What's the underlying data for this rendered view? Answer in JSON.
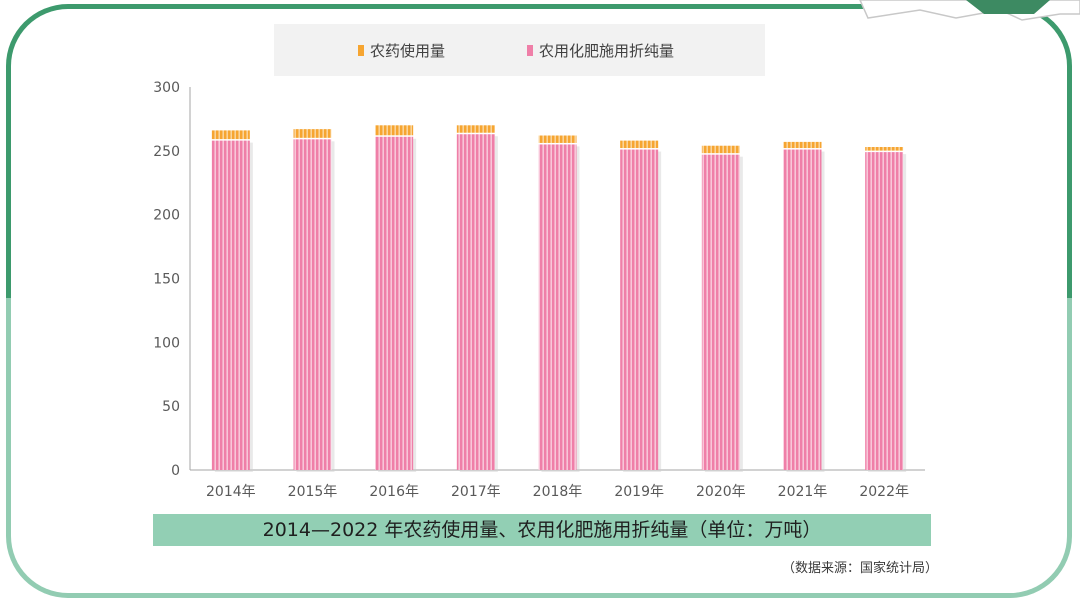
{
  "legend": {
    "pesticide": "农药使用量",
    "fertilizer": "农用化肥施用折纯量"
  },
  "caption": "2014—2022 年农药使用量、农用化肥施用折纯量（单位：万吨）",
  "source": "（数据来源：国家统计局）",
  "colors": {
    "pesticide": "#f6a531",
    "fertilizer": "#ef7fa8",
    "frame_dark": "#3d9a6d",
    "frame_light": "#92ccb2",
    "caption_bg": "#92cfb4"
  },
  "chart_data": {
    "type": "bar",
    "stacked": true,
    "categories": [
      "2014年",
      "2015年",
      "2016年",
      "2017年",
      "2018年",
      "2019年",
      "2020年",
      "2021年",
      "2022年"
    ],
    "series": [
      {
        "name": "农用化肥施用折纯量",
        "values": [
          258,
          259,
          261,
          263,
          255,
          251,
          247,
          251,
          249
        ]
      },
      {
        "name": "农药使用量",
        "values": [
          8,
          8,
          9,
          7,
          7,
          7,
          7,
          6,
          4
        ]
      }
    ],
    "yticks": [
      "0",
      "50",
      "100",
      "150",
      "200",
      "250",
      "300"
    ],
    "ylim": [
      0,
      300
    ],
    "title": "",
    "xlabel": "",
    "ylabel": "",
    "legend_position": "top"
  }
}
